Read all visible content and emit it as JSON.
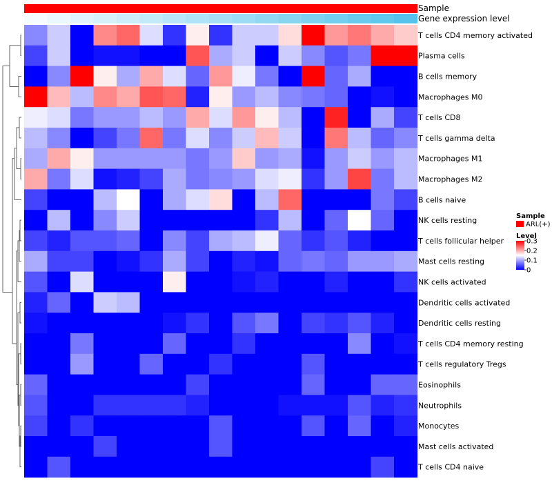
{
  "chart_data": {
    "type": "heatmap",
    "title": "",
    "rows": [
      "T cells CD4 memory activated",
      "Plasma cells",
      "B cells memory",
      "Macrophages M0",
      "T cells CD8",
      "T cells gamma delta",
      "Macrophages M1",
      "Macrophages M2",
      "B cells naive",
      "NK cells resting",
      "T cells follicular helper",
      "Mast cells resting",
      "NK cells activated",
      "Dendritic cells activated",
      "Dendritic cells resting",
      "T cells CD4 memory resting",
      "T cells regulatory  Tregs",
      "Eosinophils",
      "Neutrophils",
      "Monocytes",
      "Mast cells activated",
      "T cells CD4 naive"
    ],
    "n_columns": 17,
    "values": [
      [
        0.08,
        0.12,
        0.0,
        0.22,
        0.24,
        0.13,
        0.03,
        0.16,
        0.03,
        0.12,
        0.12,
        0.17,
        0.34,
        0.21,
        0.23,
        0.2,
        0.18
      ],
      [
        0.04,
        0.12,
        0.0,
        0.01,
        0.01,
        0.0,
        0.0,
        0.25,
        0.1,
        0.12,
        0.0,
        0.12,
        0.08,
        0.05,
        0.07,
        0.31,
        0.33
      ],
      [
        0.0,
        0.08,
        0.32,
        0.16,
        0.1,
        0.2,
        0.13,
        0.06,
        0.21,
        0.14,
        0.07,
        0.0,
        0.33,
        0.06,
        0.1,
        0.0,
        0.0
      ],
      [
        0.34,
        0.19,
        0.11,
        0.22,
        0.2,
        0.25,
        0.24,
        0.02,
        0.16,
        0.09,
        0.11,
        0.08,
        0.07,
        0.06,
        0.0,
        0.01,
        0.0
      ],
      [
        0.14,
        0.13,
        0.07,
        0.09,
        0.09,
        0.11,
        0.09,
        0.2,
        0.13,
        0.21,
        0.16,
        0.11,
        0.0,
        0.28,
        0.0,
        0.1,
        0.04
      ],
      [
        0.11,
        0.08,
        0.0,
        0.04,
        0.07,
        0.24,
        0.07,
        0.13,
        0.08,
        0.12,
        0.19,
        0.12,
        0.0,
        0.23,
        0.11,
        0.06,
        0.08
      ],
      [
        0.1,
        0.2,
        0.16,
        0.09,
        0.09,
        0.09,
        0.09,
        0.07,
        0.09,
        0.18,
        0.09,
        0.1,
        0.01,
        0.09,
        0.12,
        0.09,
        0.11
      ],
      [
        0.2,
        0.07,
        0.13,
        0.01,
        0.02,
        0.04,
        0.1,
        0.07,
        0.08,
        0.09,
        0.13,
        0.14,
        0.03,
        0.09,
        0.26,
        0.07,
        0.11
      ],
      [
        0.04,
        0.0,
        0.0,
        0.11,
        0.15,
        0.0,
        0.1,
        0.13,
        0.17,
        0.0,
        0.11,
        0.24,
        0.0,
        0.0,
        0.0,
        0.07,
        0.04
      ],
      [
        0.0,
        0.11,
        0.0,
        0.08,
        0.12,
        0.0,
        0.0,
        0.0,
        0.0,
        0.0,
        0.03,
        0.11,
        0.0,
        0.06,
        0.15,
        0.06,
        0.0
      ],
      [
        0.04,
        0.02,
        0.05,
        0.05,
        0.06,
        0.0,
        0.08,
        0.04,
        0.1,
        0.11,
        0.14,
        0.06,
        0.03,
        0.05,
        0.02,
        0.0,
        0.0
      ],
      [
        0.1,
        0.04,
        0.04,
        0.0,
        0.01,
        0.03,
        0.1,
        0.04,
        0.0,
        0.02,
        0.01,
        0.06,
        0.07,
        0.06,
        0.09,
        0.09,
        0.1
      ],
      [
        0.05,
        0.0,
        0.13,
        0.0,
        0.0,
        0.0,
        0.16,
        0.0,
        0.0,
        0.01,
        0.02,
        0.0,
        0.0,
        0.02,
        0.0,
        0.0,
        0.03
      ],
      [
        0.02,
        0.06,
        0.0,
        0.12,
        0.11,
        0.0,
        0.0,
        0.0,
        0.0,
        0.0,
        0.0,
        0.0,
        0.0,
        0.0,
        0.0,
        0.0,
        0.0
      ],
      [
        0.01,
        0.0,
        0.0,
        0.0,
        0.0,
        0.0,
        0.01,
        0.03,
        0.0,
        0.05,
        0.07,
        0.0,
        0.04,
        0.03,
        0.05,
        0.02,
        0.0
      ],
      [
        0.0,
        0.0,
        0.07,
        0.0,
        0.0,
        0.0,
        0.06,
        0.0,
        0.0,
        0.03,
        0.0,
        0.0,
        0.0,
        0.0,
        0.08,
        0.0,
        0.01
      ],
      [
        0.0,
        0.0,
        0.09,
        0.0,
        0.0,
        0.06,
        0.0,
        0.0,
        0.03,
        0.0,
        0.0,
        0.0,
        0.05,
        0.0,
        0.0,
        0.0,
        0.0
      ],
      [
        0.06,
        0.0,
        0.0,
        0.0,
        0.0,
        0.0,
        0.0,
        0.04,
        0.0,
        0.0,
        0.0,
        0.0,
        0.06,
        0.0,
        0.0,
        0.06,
        0.06
      ],
      [
        0.05,
        0.0,
        0.0,
        0.03,
        0.03,
        0.03,
        0.03,
        0.02,
        0.0,
        0.0,
        0.0,
        0.01,
        0.01,
        0.01,
        0.05,
        0.02,
        0.03
      ],
      [
        0.04,
        0.0,
        0.03,
        0.0,
        0.0,
        0.0,
        0.0,
        0.0,
        0.05,
        0.0,
        0.0,
        0.0,
        0.05,
        0.0,
        0.06,
        0.0,
        0.02
      ],
      [
        0.0,
        0.0,
        0.0,
        0.04,
        0.0,
        0.0,
        0.0,
        0.0,
        0.05,
        0.0,
        0.0,
        0.0,
        0.0,
        0.0,
        0.0,
        0.0,
        0.0
      ],
      [
        0.0,
        0.05,
        0.0,
        0.0,
        0.0,
        0.0,
        0.0,
        0.0,
        0.0,
        0.0,
        0.0,
        0.0,
        0.0,
        0.0,
        0.0,
        0.04,
        0.0
      ]
    ],
    "color_scale": {
      "low": "#0000ff",
      "mid": "#ffffff",
      "high": "#ff0000",
      "range": [
        0,
        0.3
      ],
      "midpoint": 0.15
    },
    "annotations": [
      {
        "name": "Sample",
        "values": [
          "ARL(+)",
          "ARL(+)",
          "ARL(+)",
          "ARL(+)",
          "ARL(+)",
          "ARL(+)",
          "ARL(+)",
          "ARL(+)",
          "ARL(+)",
          "ARL(+)",
          "ARL(+)",
          "ARL(+)",
          "ARL(+)",
          "ARL(+)",
          "ARL(+)",
          "ARL(+)",
          "ARL(+)"
        ],
        "color": "#ff0000"
      },
      {
        "name": "Gene expression level",
        "levels": [
          0.0,
          0.05,
          0.1,
          0.15,
          0.2,
          0.25,
          0.3,
          0.35,
          0.4,
          0.45,
          0.5,
          0.55,
          0.6,
          0.65,
          0.7,
          0.75,
          0.8
        ],
        "low_color": "#f5fbff",
        "high_color": "#56c3ec"
      }
    ],
    "legend": {
      "sample_title": "Sample",
      "sample_entry": "ARL(+)",
      "level_title": "Level",
      "level_ticks": [
        0.3,
        0.2,
        0.1,
        0
      ],
      "level_tick_labels": [
        "0.3",
        "0.2",
        "0.1",
        "0"
      ],
      "placement": "right"
    },
    "row_dendrogram": true,
    "column_dendrogram": false
  }
}
